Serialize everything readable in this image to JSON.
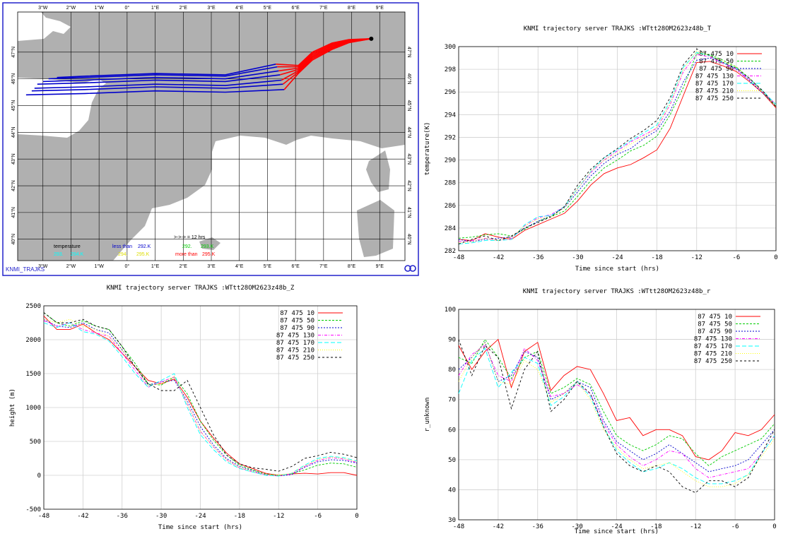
{
  "map": {
    "type": "trajectory-map",
    "source_label": "KNMI_TRAJKS",
    "lon_ticks": [
      "3°W",
      "2°W",
      "1°W",
      "0°",
      "1°E",
      "2°E",
      "3°E",
      "4°E",
      "5°E",
      "6°E",
      "7°E",
      "8°E",
      "9°E"
    ],
    "lon_values": [
      -3,
      -2,
      -1,
      0,
      1,
      2,
      3,
      4,
      5,
      6,
      7,
      8,
      9
    ],
    "lat_ticks": [
      "47°N",
      "46°N",
      "45°N",
      "44°N",
      "43°N",
      "42°N",
      "41°N",
      "40°N"
    ],
    "lat_values": [
      47,
      46,
      45,
      44,
      43,
      42,
      41,
      40
    ],
    "extent": {
      "lon": [
        -3.9,
        9.9
      ],
      "lat": [
        39.2,
        48.5
      ]
    },
    "legend": {
      "title": "temperature",
      "marker_label": ">->-> = 12 hrs",
      "items": [
        {
          "label": "less than",
          "value": "292.K",
          "color": "#0000cc"
        },
        {
          "label": "292.",
          "value": "293.K",
          "color": "#00cc00"
        },
        {
          "label": "293.",
          "value": "294.K",
          "color": "#00ffff"
        },
        {
          "label": "294.",
          "value": "295.K",
          "color": "#ffff00"
        },
        {
          "label": "more than",
          "value": "295.K",
          "color": "#ff0000"
        }
      ]
    },
    "colors": {
      "land": "#b0b0b0",
      "sea": "#ffffff",
      "frame": "#2222cc",
      "grid": "#000000"
    }
  },
  "chart_data": [
    {
      "type": "line",
      "title": "KNMI trajectory server TRAJKS :WTtt28OM2623z48b_T",
      "xlabel": "Time since start (hrs)",
      "ylabel": "temperature(K)",
      "xlim": [
        -48,
        0
      ],
      "ylim": [
        282,
        300
      ],
      "xticks": [
        -48,
        -42,
        -36,
        -30,
        -24,
        -18,
        -12,
        -6,
        0
      ],
      "yticks": [
        282,
        284,
        286,
        288,
        290,
        292,
        294,
        296,
        298,
        300
      ],
      "x": [
        -48,
        -46,
        -44,
        -42,
        -40,
        -38,
        -36,
        -34,
        -32,
        -30,
        -28,
        -26,
        -24,
        -22,
        -20,
        -18,
        -16,
        -14,
        -12,
        -10,
        -8,
        -6,
        -4,
        -2,
        0
      ],
      "legend_position": "top-right",
      "series": [
        {
          "name": "87 475 10",
          "color": "#ff0000",
          "values": [
            283.0,
            282.9,
            283.5,
            283.2,
            283.0,
            283.8,
            284.3,
            284.8,
            285.3,
            286.4,
            287.8,
            288.8,
            289.3,
            289.6,
            290.2,
            290.9,
            292.8,
            295.7,
            298.6,
            298.7,
            298.3,
            297.8,
            296.9,
            295.9,
            294.6
          ]
        },
        {
          "name": "87 475 50",
          "color": "#00cc00",
          "values": [
            283.1,
            283.2,
            283.4,
            283.5,
            283.3,
            283.9,
            284.6,
            285.0,
            285.5,
            286.8,
            288.2,
            289.3,
            290.0,
            290.8,
            291.3,
            292.1,
            294.0,
            296.4,
            299.4,
            299.3,
            298.8,
            298.2,
            297.2,
            296.0,
            294.7
          ]
        },
        {
          "name": "87 475 90",
          "color": "#0000cc",
          "values": [
            283.0,
            282.8,
            283.0,
            283.1,
            283.2,
            284.0,
            284.6,
            285.1,
            285.8,
            287.2,
            288.6,
            289.7,
            290.5,
            291.0,
            291.9,
            292.6,
            294.3,
            296.9,
            298.8,
            299.0,
            298.6,
            298.0,
            297.0,
            295.9,
            294.8
          ]
        },
        {
          "name": "87 475 130",
          "color": "#ff00ff",
          "values": [
            282.8,
            282.9,
            283.1,
            282.9,
            283.1,
            284.2,
            284.9,
            285.2,
            285.9,
            287.5,
            288.9,
            290.0,
            290.8,
            291.6,
            292.2,
            292.8,
            294.9,
            297.8,
            299.3,
            299.1,
            298.5,
            298.0,
            297.1,
            296.0,
            294.9
          ]
        },
        {
          "name": "87 475 170",
          "color": "#00ffff",
          "values": [
            282.6,
            282.7,
            282.9,
            282.9,
            283.0,
            284.3,
            285.0,
            285.1,
            285.9,
            287.5,
            289.0,
            290.2,
            290.9,
            291.7,
            292.4,
            293.1,
            295.2,
            298.2,
            299.5,
            299.2,
            298.6,
            298.1,
            297.2,
            296.1,
            294.9
          ]
        },
        {
          "name": "87 475 210",
          "color": "#ffff00",
          "values": [
            282.7,
            282.8,
            283.1,
            282.9,
            283.2,
            284.2,
            284.8,
            285.0,
            285.8,
            287.5,
            289.0,
            290.0,
            290.6,
            291.4,
            292.0,
            292.9,
            295.0,
            298.0,
            299.6,
            299.2,
            298.7,
            298.2,
            297.2,
            296.0,
            294.8
          ]
        },
        {
          "name": "87 475 250",
          "color": "#000000",
          "values": [
            282.6,
            283.0,
            283.3,
            282.9,
            283.3,
            284.0,
            284.5,
            285.0,
            285.9,
            287.8,
            289.2,
            290.2,
            291.0,
            291.9,
            292.6,
            293.5,
            295.5,
            298.4,
            299.8,
            299.2,
            298.6,
            298.1,
            297.2,
            296.1,
            294.7
          ]
        }
      ]
    },
    {
      "type": "line",
      "title": "KNMI trajectory server TRAJKS :WTtt28OM2623z48b_Z",
      "xlabel": "Time since start (hrs)",
      "ylabel": "height (m)",
      "xlim": [
        -48,
        0
      ],
      "ylim": [
        -500,
        2500
      ],
      "xticks": [
        -48,
        -42,
        -36,
        -30,
        -24,
        -18,
        -12,
        -6,
        0
      ],
      "yticks": [
        -500,
        0,
        500,
        1000,
        1500,
        2000,
        2500
      ],
      "x": [
        -48,
        -46,
        -44,
        -42,
        -40,
        -38,
        -36,
        -34,
        -32,
        -30,
        -28,
        -26,
        -24,
        -22,
        -20,
        -18,
        -16,
        -14,
        -12,
        -10,
        -8,
        -6,
        -4,
        -2,
        0
      ],
      "legend_position": "top-right",
      "series": [
        {
          "name": "87 475 10",
          "color": "#ff0000",
          "values": [
            2350,
            2150,
            2150,
            2230,
            2100,
            2000,
            1800,
            1600,
            1400,
            1350,
            1420,
            1150,
            800,
            550,
            330,
            170,
            100,
            30,
            0,
            20,
            30,
            20,
            40,
            40,
            0
          ]
        },
        {
          "name": "87 475 50",
          "color": "#00cc00",
          "values": [
            2400,
            2250,
            2200,
            2280,
            2200,
            2150,
            1900,
            1650,
            1350,
            1330,
            1450,
            1200,
            800,
            520,
            300,
            150,
            80,
            20,
            0,
            20,
            80,
            150,
            180,
            170,
            120
          ]
        },
        {
          "name": "87 475 90",
          "color": "#0000cc",
          "values": [
            2300,
            2200,
            2180,
            2250,
            2150,
            2100,
            1850,
            1600,
            1330,
            1380,
            1400,
            1100,
            720,
            450,
            250,
            130,
            70,
            10,
            -10,
            10,
            120,
            200,
            230,
            220,
            180
          ]
        },
        {
          "name": "87 475 130",
          "color": "#ff00ff",
          "values": [
            2280,
            2200,
            2250,
            2150,
            2100,
            2050,
            1800,
            1550,
            1300,
            1380,
            1450,
            1050,
            650,
            420,
            230,
            110,
            50,
            10,
            -10,
            20,
            130,
            220,
            260,
            240,
            190
          ]
        },
        {
          "name": "87 475 170",
          "color": "#00ffff",
          "values": [
            2250,
            2180,
            2250,
            2120,
            2080,
            1980,
            1750,
            1500,
            1300,
            1400,
            1500,
            1000,
            600,
            380,
            200,
            100,
            50,
            0,
            -10,
            30,
            150,
            250,
            280,
            260,
            210
          ]
        },
        {
          "name": "87 475 210",
          "color": "#ffff00",
          "values": [
            2300,
            2250,
            2300,
            2200,
            2150,
            2050,
            1850,
            1600,
            1320,
            1350,
            1460,
            1050,
            650,
            420,
            230,
            110,
            60,
            10,
            0,
            30,
            140,
            230,
            270,
            250,
            200
          ]
        },
        {
          "name": "87 475 250",
          "color": "#000000",
          "values": [
            2400,
            2250,
            2250,
            2300,
            2200,
            2150,
            1900,
            1600,
            1350,
            1250,
            1250,
            1400,
            1000,
            600,
            300,
            170,
            110,
            90,
            60,
            130,
            250,
            290,
            340,
            310,
            260
          ]
        }
      ]
    },
    {
      "type": "line",
      "title": "KNMI trajectory server TRAJKS :WTtt28OM2623z48b_r",
      "xlabel": "Time since start (hrs)",
      "ylabel": "r_unknown",
      "xlim": [
        -48,
        0
      ],
      "ylim": [
        30,
        100
      ],
      "xticks": [
        -48,
        -42,
        -36,
        -30,
        -24,
        -18,
        -12,
        -6,
        0
      ],
      "yticks": [
        30,
        40,
        50,
        60,
        70,
        80,
        90,
        100
      ],
      "x": [
        -48,
        -46,
        -44,
        -42,
        -40,
        -38,
        -36,
        -34,
        -32,
        -30,
        -28,
        -26,
        -24,
        -22,
        -20,
        -18,
        -16,
        -14,
        -12,
        -10,
        -8,
        -6,
        -4,
        -2,
        0
      ],
      "legend_position": "top-right",
      "series": [
        {
          "name": "87 475 10",
          "color": "#ff0000",
          "values": [
            88,
            80,
            86,
            90,
            74,
            86,
            89,
            73,
            78,
            81,
            80,
            72,
            63,
            64,
            58,
            60,
            60,
            58,
            51,
            50,
            53,
            59,
            58,
            60,
            65
          ]
        },
        {
          "name": "87 475 50",
          "color": "#00cc00",
          "values": [
            84,
            82,
            90,
            84,
            77,
            84,
            86,
            72,
            74,
            77,
            75,
            66,
            58,
            55,
            53,
            55,
            58,
            57,
            52,
            48,
            51,
            53,
            55,
            57,
            62
          ]
        },
        {
          "name": "87 475 90",
          "color": "#0000cc",
          "values": [
            80,
            84,
            89,
            76,
            78,
            86,
            84,
            70,
            72,
            76,
            74,
            63,
            56,
            53,
            50,
            52,
            55,
            52,
            49,
            46,
            47,
            48,
            50,
            55,
            60
          ]
        },
        {
          "name": "87 475 130",
          "color": "#ff00ff",
          "values": [
            78,
            85,
            88,
            78,
            76,
            87,
            83,
            71,
            72,
            75,
            72,
            62,
            55,
            51,
            48,
            50,
            53,
            52,
            47,
            44,
            45,
            46,
            47,
            52,
            58
          ]
        },
        {
          "name": "87 475 170",
          "color": "#00ffff",
          "values": [
            72,
            83,
            87,
            74,
            79,
            84,
            82,
            68,
            71,
            76,
            71,
            61,
            53,
            49,
            46,
            47,
            49,
            47,
            44,
            42,
            42,
            43,
            45,
            52,
            58
          ]
        },
        {
          "name": "87 475 210",
          "color": "#ffff00",
          "values": [
            76,
            84,
            89,
            76,
            75,
            83,
            80,
            69,
            72,
            76,
            70,
            60,
            54,
            50,
            47,
            48,
            49,
            46,
            43,
            41,
            41,
            42,
            45,
            51,
            57
          ]
        },
        {
          "name": "87 475 250",
          "color": "#000000",
          "values": [
            90,
            78,
            88,
            84,
            67,
            80,
            86,
            66,
            70,
            76,
            72,
            61,
            52,
            48,
            46,
            48,
            46,
            41,
            39,
            43,
            43,
            41,
            44,
            52,
            60
          ]
        }
      ]
    }
  ]
}
